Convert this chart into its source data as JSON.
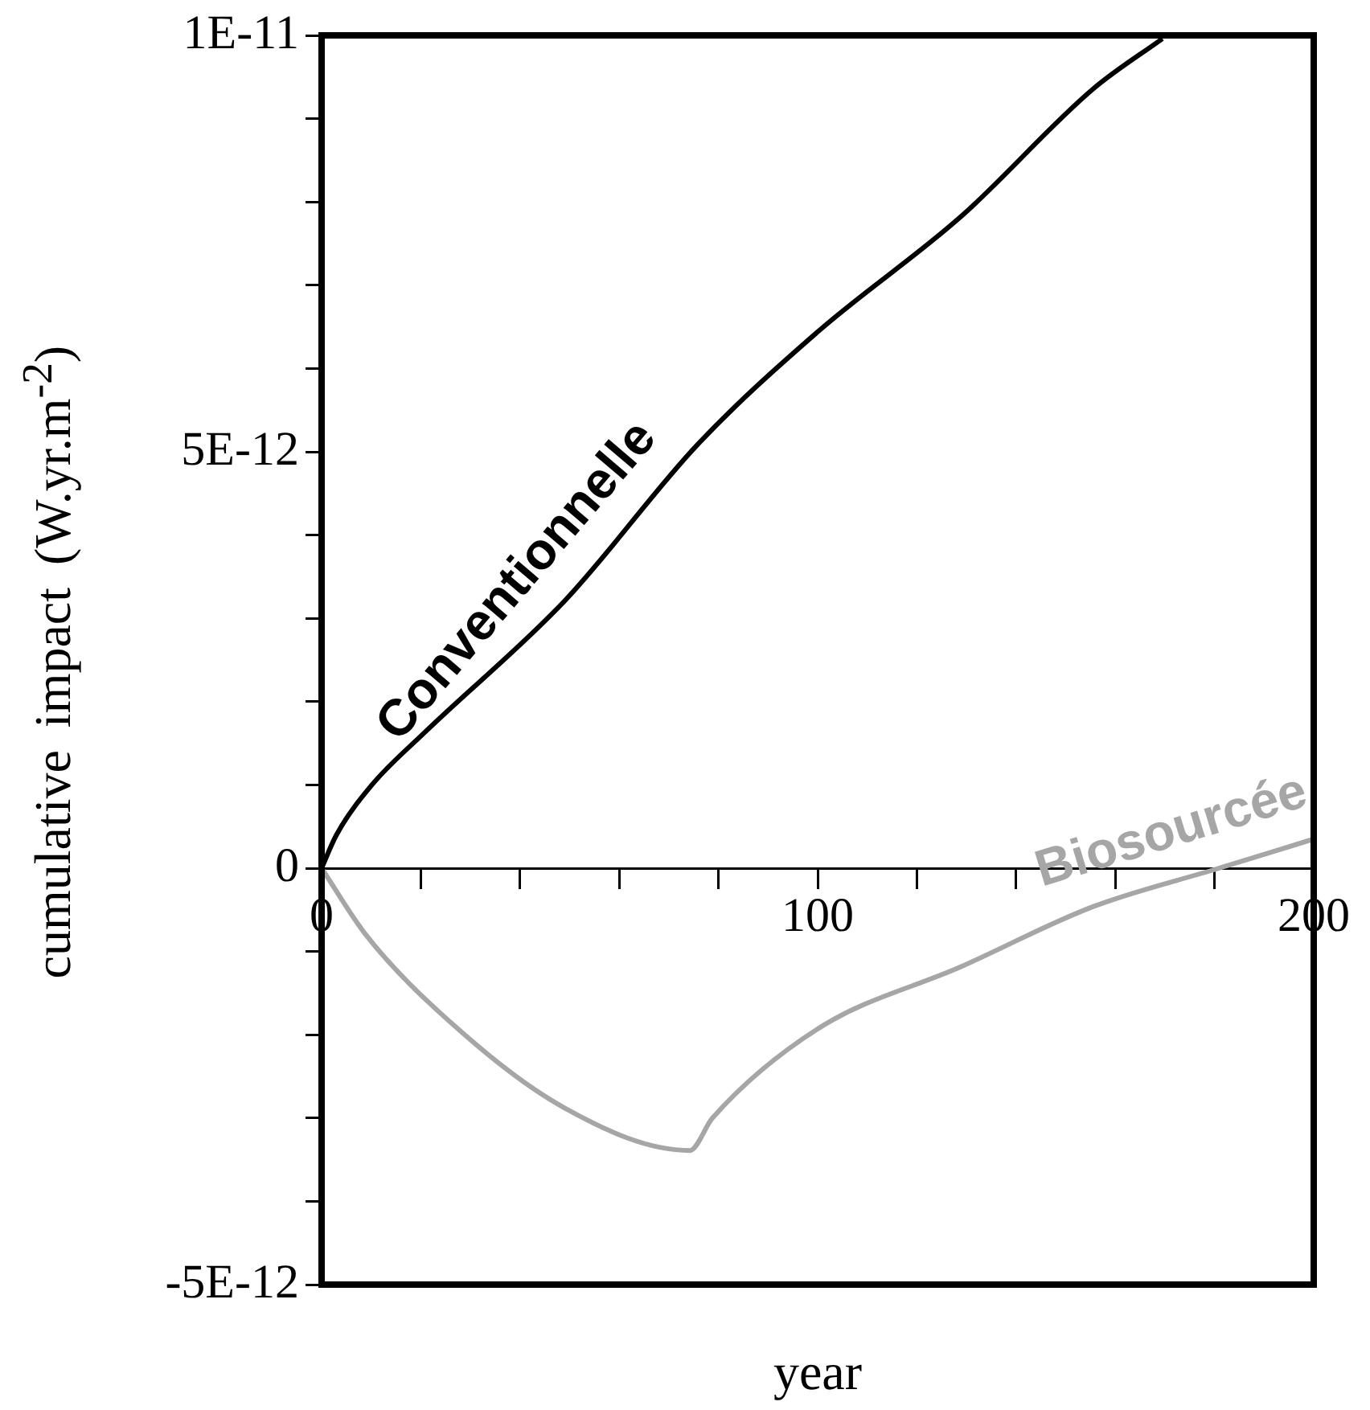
{
  "chart_data": {
    "type": "line",
    "xlabel": "year",
    "ylabel": "cumulative impact (W.yr.m$^{-2}$)",
    "xlim": [
      0,
      200
    ],
    "xticks": [
      0,
      {
        "value": 20,
        "label": null
      },
      {
        "value": 40,
        "label": null
      },
      {
        "value": 60,
        "label": null
      },
      {
        "value": 80,
        "label": null
      },
      100,
      {
        "value": 120,
        "label": null
      },
      {
        "value": 140,
        "label": null
      },
      {
        "value": 160,
        "label": null
      },
      {
        "value": 180,
        "label": null
      },
      200
    ],
    "ylim": [
      -5e-12,
      1e-11
    ],
    "yticks": [
      {
        "value": -5e-12,
        "label": "-5E-12"
      },
      {
        "value": -4e-12,
        "label": null
      },
      {
        "value": -3e-12,
        "label": null
      },
      {
        "value": -2e-12,
        "label": null
      },
      {
        "value": -1e-12,
        "label": null
      },
      {
        "value": 0,
        "label": "0"
      },
      {
        "value": 1e-12,
        "label": null
      },
      {
        "value": 2e-12,
        "label": null
      },
      {
        "value": 3e-12,
        "label": null
      },
      {
        "value": 4e-12,
        "label": null
      },
      {
        "value": 5e-12,
        "label": "5E-12"
      },
      {
        "value": 6e-12,
        "label": null
      },
      {
        "value": 7e-12,
        "label": null
      },
      {
        "value": 8e-12,
        "label": null
      },
      {
        "value": 9e-12,
        "label": null
      },
      {
        "value": 1e-11,
        "label": "1E-11"
      }
    ],
    "grid": false,
    "legend": false,
    "marker": "none",
    "line_style": "solid",
    "series": [
      {
        "name": "Conventionnelle",
        "color": "#000000",
        "x": [
          0,
          3,
          10,
          20.6,
          49,
          76,
          100,
          129,
          155.6,
          169.5
        ],
        "values": [
          0,
          4e-13,
          9.9e-13,
          1.62e-12,
          3.21e-12,
          5.1e-12,
          6.44e-12,
          7.83e-12,
          9.36e-12,
          9.96e-12
        ]
      },
      {
        "name": "Biosourcée",
        "color": "#a6a6a6",
        "x": [
          0,
          8.8,
          23.2,
          49,
          74.2,
          78.8,
          100,
          129,
          155.6,
          180.9,
          200
        ],
        "values": [
          0,
          -7.9e-13,
          -1.7e-12,
          -2.88e-12,
          -3.39e-12,
          -3e-12,
          -1.93e-12,
          -1.18e-12,
          -4.6e-13,
          0,
          3.5e-13
        ]
      }
    ]
  }
}
